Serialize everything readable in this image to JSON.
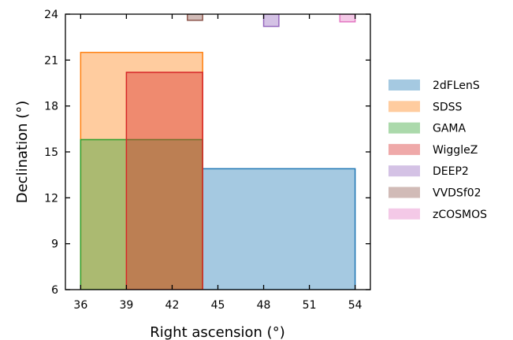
{
  "chart_data": {
    "type": "area",
    "xlabel": "Right ascension (°)",
    "ylabel": "Declination (°)",
    "xlim": [
      35,
      55
    ],
    "ylim": [
      6,
      24
    ],
    "xticks": [
      36,
      39,
      42,
      45,
      48,
      51,
      54
    ],
    "yticks": [
      6,
      9,
      12,
      15,
      18,
      21,
      24
    ],
    "grid": false,
    "legend_placement": "right, outside plot",
    "series": [
      {
        "name": "2dFLenS",
        "color": "#1f77b4",
        "x": [
          44.0,
          54.0
        ],
        "y": [
          6.0,
          13.9
        ]
      },
      {
        "name": "SDSS",
        "color": "#ff7f0e",
        "x": [
          36.0,
          44.0
        ],
        "y": [
          6.0,
          21.5
        ]
      },
      {
        "name": "GAMA",
        "color": "#2ca02c",
        "x": [
          36.0,
          44.0
        ],
        "y": [
          6.0,
          15.8
        ]
      },
      {
        "name": "WiggleZ",
        "color": "#d62728",
        "x": [
          39.0,
          44.0
        ],
        "y": [
          6.0,
          20.2
        ]
      },
      {
        "name": "DEEP2",
        "color": "#9467bd",
        "x": [
          48.0,
          49.0
        ],
        "y": [
          23.2,
          24.0
        ]
      },
      {
        "name": "VVDSf02",
        "color": "#8c564b",
        "x": [
          43.0,
          44.0
        ],
        "y": [
          23.6,
          24.0
        ]
      },
      {
        "name": "zCOSMOS",
        "color": "#e377c2",
        "x": [
          53.0,
          54.0
        ],
        "y": [
          23.5,
          24.0
        ]
      }
    ]
  }
}
